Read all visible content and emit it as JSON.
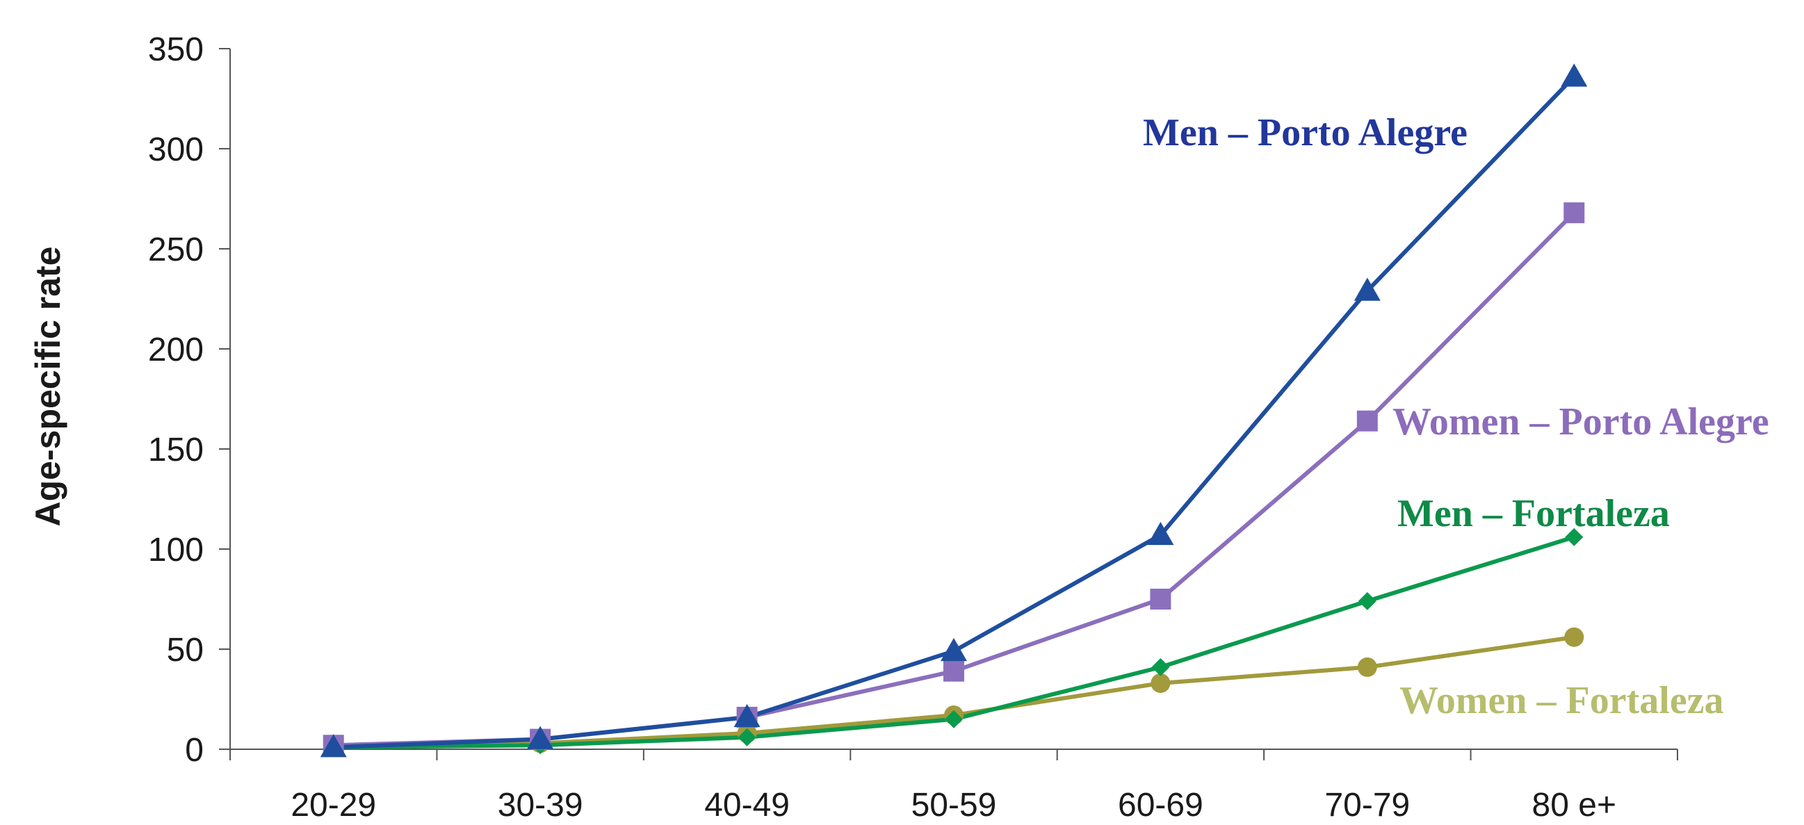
{
  "chart_data": {
    "type": "line",
    "title": "",
    "xlabel": "",
    "ylabel": "Age-specific rate",
    "categories": [
      "20-29",
      "30-39",
      "40-49",
      "50-59",
      "60-69",
      "70-79",
      "80 e+"
    ],
    "ylim": [
      0,
      350
    ],
    "yticks": [
      "0",
      "50",
      "100",
      "150",
      "200",
      "250",
      "300",
      "350"
    ],
    "grid": false,
    "legend": "inline labels",
    "series": [
      {
        "name": "Men – Porto Alegre",
        "color": "#1f4e9e",
        "marker": "triangle",
        "label_color": "#22379a",
        "values": [
          1,
          5,
          16,
          49,
          107,
          229,
          336
        ]
      },
      {
        "name": "Women – Porto Alegre",
        "color": "#8b6fbd",
        "marker": "square",
        "label_color": "#8c6cbb",
        "values": [
          2,
          5,
          16,
          39,
          75,
          164,
          268
        ]
      },
      {
        "name": "Men – Fortaleza",
        "color": "#0a9a4d",
        "marker": "diamond",
        "label_color": "#0f8a47",
        "values": [
          1,
          2,
          6,
          15,
          41,
          74,
          106
        ]
      },
      {
        "name": "Women – Fortaleza",
        "color": "#a29a3c",
        "marker": "circle",
        "label_color": "#b6bd6e",
        "values": [
          1,
          3,
          8,
          17,
          33,
          41,
          56
        ]
      }
    ]
  }
}
